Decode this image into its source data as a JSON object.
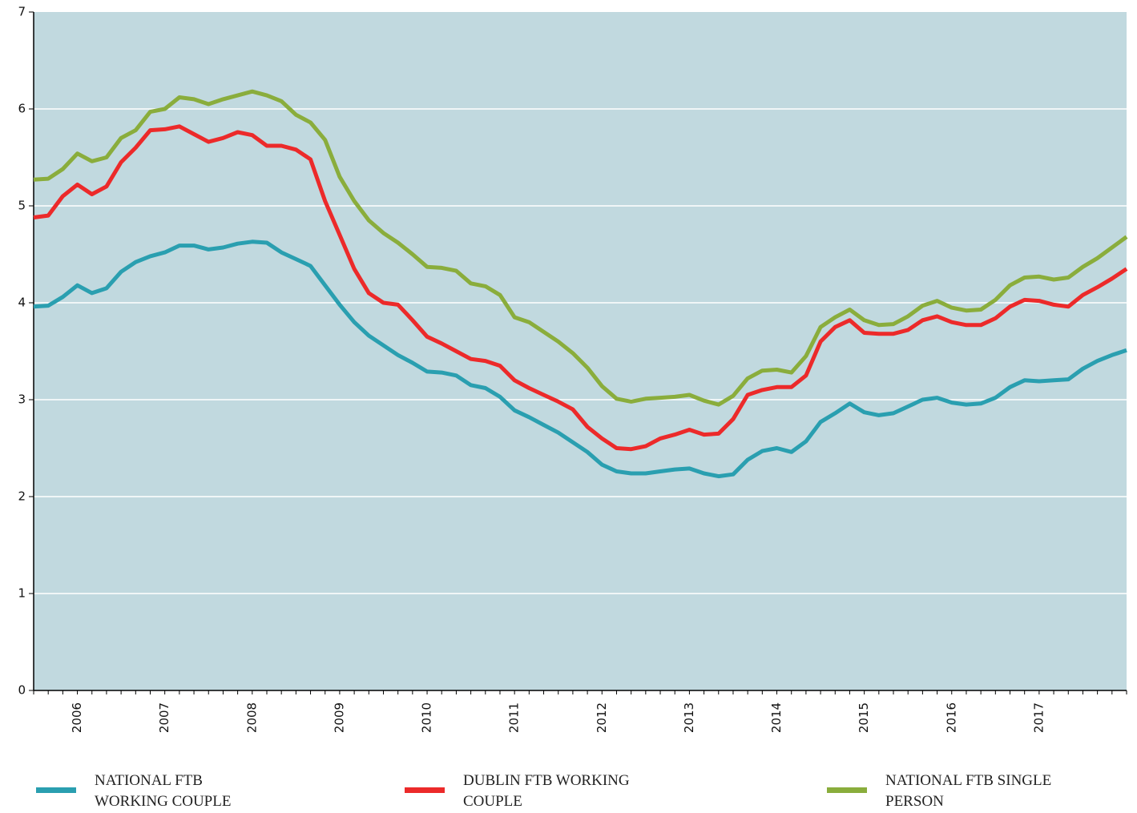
{
  "chart_data": {
    "type": "line",
    "categories": [
      null,
      null,
      null,
      "2006",
      null,
      null,
      null,
      null,
      null,
      "2007",
      null,
      null,
      null,
      null,
      null,
      "2008",
      null,
      null,
      null,
      null,
      null,
      "2009",
      null,
      null,
      null,
      null,
      null,
      "2010",
      null,
      null,
      null,
      null,
      null,
      "2011",
      null,
      null,
      null,
      null,
      null,
      "2012",
      null,
      null,
      null,
      null,
      null,
      "2013",
      null,
      null,
      null,
      null,
      null,
      "2014",
      null,
      null,
      null,
      null,
      null,
      "2015",
      null,
      null,
      null,
      null,
      null,
      "2016",
      null,
      null,
      null,
      null,
      null,
      "2017",
      null,
      null,
      null,
      null,
      null,
      null
    ],
    "series": [
      {
        "name": "NATIONAL FTB WORKING COUPLE",
        "color": "#2a9fb0",
        "values": [
          3.96,
          3.97,
          4.06,
          4.18,
          4.1,
          4.15,
          4.32,
          4.42,
          4.48,
          4.52,
          4.59,
          4.59,
          4.55,
          4.57,
          4.61,
          4.63,
          4.62,
          4.52,
          4.45,
          4.38,
          4.18,
          3.98,
          3.8,
          3.66,
          3.56,
          3.46,
          3.38,
          3.29,
          3.28,
          3.25,
          3.15,
          3.12,
          3.03,
          2.89,
          2.82,
          2.74,
          2.66,
          2.56,
          2.46,
          2.33,
          2.26,
          2.24,
          2.24,
          2.26,
          2.28,
          2.29,
          2.24,
          2.21,
          2.23,
          2.38,
          2.47,
          2.5,
          2.46,
          2.57,
          2.77,
          2.86,
          2.96,
          2.87,
          2.84,
          2.86,
          2.93,
          3.0,
          3.02,
          2.97,
          2.95,
          2.96,
          3.02,
          3.13,
          3.2,
          3.19,
          3.2,
          3.21,
          3.32,
          3.4,
          3.46,
          3.51
        ]
      },
      {
        "name": "DUBLIN FTB WORKING COUPLE",
        "color": "#ec2a2a",
        "values": [
          4.88,
          4.9,
          5.1,
          5.22,
          5.12,
          5.2,
          5.45,
          5.6,
          5.78,
          5.79,
          5.82,
          5.74,
          5.66,
          5.7,
          5.76,
          5.73,
          5.62,
          5.62,
          5.58,
          5.48,
          5.05,
          4.7,
          4.35,
          4.1,
          4.0,
          3.98,
          3.82,
          3.65,
          3.58,
          3.5,
          3.42,
          3.4,
          3.35,
          3.2,
          3.12,
          3.05,
          2.98,
          2.9,
          2.72,
          2.6,
          2.5,
          2.49,
          2.52,
          2.6,
          2.64,
          2.69,
          2.64,
          2.65,
          2.8,
          3.05,
          3.1,
          3.13,
          3.13,
          3.25,
          3.6,
          3.75,
          3.82,
          3.69,
          3.68,
          3.68,
          3.72,
          3.82,
          3.86,
          3.8,
          3.77,
          3.77,
          3.84,
          3.96,
          4.03,
          4.02,
          3.98,
          3.96,
          4.08,
          4.16,
          4.25,
          4.35
        ]
      },
      {
        "name": "NATIONAL FTB SINGLE PERSON",
        "color": "#8aad3c",
        "values": [
          5.27,
          5.28,
          5.38,
          5.54,
          5.46,
          5.5,
          5.7,
          5.78,
          5.97,
          6.0,
          6.12,
          6.1,
          6.05,
          6.1,
          6.14,
          6.18,
          6.14,
          6.08,
          5.94,
          5.86,
          5.68,
          5.3,
          5.05,
          4.85,
          4.72,
          4.62,
          4.5,
          4.37,
          4.36,
          4.33,
          4.2,
          4.17,
          4.08,
          3.85,
          3.8,
          3.7,
          3.6,
          3.48,
          3.33,
          3.14,
          3.01,
          2.98,
          3.01,
          3.02,
          3.03,
          3.05,
          2.99,
          2.95,
          3.04,
          3.22,
          3.3,
          3.31,
          3.28,
          3.45,
          3.75,
          3.85,
          3.93,
          3.82,
          3.77,
          3.78,
          3.86,
          3.97,
          4.02,
          3.95,
          3.92,
          3.93,
          4.03,
          4.18,
          4.26,
          4.27,
          4.24,
          4.26,
          4.37,
          4.46,
          4.57,
          4.68
        ]
      }
    ],
    "ylim": [
      0,
      7
    ],
    "yticks": [
      0,
      1,
      2,
      3,
      4,
      5,
      6,
      7
    ],
    "grid": true,
    "background": "#c1d9df"
  }
}
